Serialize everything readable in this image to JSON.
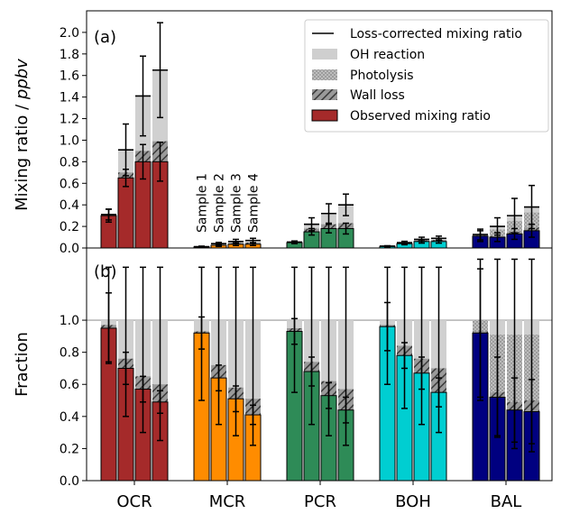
{
  "chart_data": [
    {
      "type": "bar",
      "panel_label": "(a)",
      "ylabel_main": "Mixing ratio / ",
      "ylabel_unit": "ppbv",
      "ylim": [
        0,
        2.2
      ],
      "yticks": [
        "0.0",
        "0.2",
        "0.4",
        "0.6",
        "0.8",
        "1.0",
        "1.2",
        "1.4",
        "1.6",
        "1.8",
        "2.0"
      ],
      "categories": [
        "OCR",
        "MCR",
        "PCR",
        "BOH",
        "BAL"
      ],
      "category_colors": [
        "#a52a2a",
        "#ff8c00",
        "#2e8b57",
        "#00ced1",
        "#000080"
      ],
      "sample_labels": [
        "Sample 1",
        "Sample 2",
        "Sample 3",
        "Sample 4"
      ],
      "legend": {
        "position": "top-right",
        "entries": [
          "Loss-corrected mixing ratio",
          "OH reaction",
          "Photolysis",
          "Wall loss",
          "Observed mixing ratio"
        ]
      },
      "groups": [
        {
          "category": "OCR",
          "samples": [
            {
              "observed": 0.3,
              "obs_err": 0.06,
              "wall": 0.02,
              "photolysis": 0.0,
              "oh_top": 0.31,
              "corrected": 0.31,
              "corr_err": 0.05
            },
            {
              "observed": 0.65,
              "obs_err": 0.08,
              "wall": 0.7,
              "photolysis": 0.7,
              "oh_top": 0.91,
              "corrected": 0.91,
              "corr_err": 0.24
            },
            {
              "observed": 0.8,
              "obs_err": 0.16,
              "wall": 0.9,
              "photolysis": 0.9,
              "oh_top": 1.41,
              "corrected": 1.41,
              "corr_err": 0.37
            },
            {
              "observed": 0.8,
              "obs_err": 0.18,
              "wall": 0.99,
              "photolysis": 0.99,
              "oh_top": 1.65,
              "corrected": 1.65,
              "corr_err": 0.44
            }
          ]
        },
        {
          "category": "MCR",
          "samples": [
            {
              "observed": 0.01,
              "obs_err": 0.005,
              "wall": 0.011,
              "photolysis": 0.011,
              "oh_top": 0.012,
              "corrected": 0.012,
              "corr_err": 0.005
            },
            {
              "observed": 0.025,
              "obs_err": 0.01,
              "wall": 0.03,
              "photolysis": 0.03,
              "oh_top": 0.04,
              "corrected": 0.04,
              "corr_err": 0.012
            },
            {
              "observed": 0.035,
              "obs_err": 0.012,
              "wall": 0.045,
              "photolysis": 0.045,
              "oh_top": 0.06,
              "corrected": 0.06,
              "corr_err": 0.02
            },
            {
              "observed": 0.035,
              "obs_err": 0.012,
              "wall": 0.05,
              "photolysis": 0.05,
              "oh_top": 0.07,
              "corrected": 0.07,
              "corr_err": 0.02
            }
          ]
        },
        {
          "category": "PCR",
          "samples": [
            {
              "observed": 0.05,
              "obs_err": 0.01,
              "wall": 0.052,
              "photolysis": 0.052,
              "oh_top": 0.055,
              "corrected": 0.055,
              "corr_err": 0.01
            },
            {
              "observed": 0.15,
              "obs_err": 0.03,
              "wall": 0.18,
              "photolysis": 0.18,
              "oh_top": 0.22,
              "corrected": 0.22,
              "corr_err": 0.06
            },
            {
              "observed": 0.18,
              "obs_err": 0.04,
              "wall": 0.22,
              "photolysis": 0.22,
              "oh_top": 0.32,
              "corrected": 0.32,
              "corr_err": 0.09
            },
            {
              "observed": 0.18,
              "obs_err": 0.05,
              "wall": 0.23,
              "photolysis": 0.23,
              "oh_top": 0.4,
              "corrected": 0.4,
              "corr_err": 0.1
            }
          ]
        },
        {
          "category": "BOH",
          "samples": [
            {
              "observed": 0.015,
              "obs_err": 0.004,
              "wall": 0.016,
              "photolysis": 0.016,
              "oh_top": 0.017,
              "corrected": 0.017,
              "corr_err": 0.004
            },
            {
              "observed": 0.04,
              "obs_err": 0.01,
              "wall": 0.045,
              "photolysis": 0.045,
              "oh_top": 0.05,
              "corrected": 0.05,
              "corr_err": 0.012
            },
            {
              "observed": 0.06,
              "obs_err": 0.015,
              "wall": 0.07,
              "photolysis": 0.07,
              "oh_top": 0.08,
              "corrected": 0.08,
              "corr_err": 0.02
            },
            {
              "observed": 0.06,
              "obs_err": 0.015,
              "wall": 0.075,
              "photolysis": 0.075,
              "oh_top": 0.09,
              "corrected": 0.09,
              "corr_err": 0.02
            }
          ]
        },
        {
          "category": "BAL",
          "samples": [
            {
              "observed": 0.11,
              "obs_err": 0.05,
              "wall": 0.115,
              "photolysis": 0.12,
              "oh_top": 0.125,
              "corrected": 0.125,
              "corr_err": 0.05
            },
            {
              "observed": 0.1,
              "obs_err": 0.04,
              "wall": 0.11,
              "photolysis": 0.17,
              "oh_top": 0.2,
              "corrected": 0.2,
              "corr_err": 0.08
            },
            {
              "observed": 0.13,
              "obs_err": 0.05,
              "wall": 0.15,
              "photolysis": 0.25,
              "oh_top": 0.3,
              "corrected": 0.3,
              "corr_err": 0.16
            },
            {
              "observed": 0.16,
              "obs_err": 0.06,
              "wall": 0.19,
              "photolysis": 0.33,
              "oh_top": 0.38,
              "corrected": 0.38,
              "corr_err": 0.2
            }
          ]
        }
      ]
    },
    {
      "type": "bar",
      "panel_label": "(b)",
      "ylabel": "Fraction",
      "ylim": [
        0,
        1.45
      ],
      "yticks": [
        "0.0",
        "0.2",
        "0.4",
        "0.6",
        "0.8",
        "1.0"
      ],
      "xlabels": [
        "OCR",
        "MCR",
        "PCR",
        "BOH",
        "BAL"
      ],
      "reference_line": 1.0,
      "groups": [
        {
          "category": "OCR",
          "samples": [
            {
              "observed": 0.95,
              "obs_err": 0.22,
              "wall": 0.97,
              "photolysis": 0.97,
              "err_lo": 0.74,
              "err_hi": 1.33
            },
            {
              "observed": 0.7,
              "obs_err": 0.1,
              "wall": 0.76,
              "photolysis": 0.76,
              "err_lo": 0.4,
              "err_hi": 1.33
            },
            {
              "observed": 0.57,
              "obs_err": 0.08,
              "wall": 0.65,
              "photolysis": 0.65,
              "err_lo": 0.3,
              "err_hi": 1.33
            },
            {
              "observed": 0.49,
              "obs_err": 0.07,
              "wall": 0.6,
              "photolysis": 0.6,
              "err_lo": 0.25,
              "err_hi": 1.33
            }
          ]
        },
        {
          "category": "MCR",
          "samples": [
            {
              "observed": 0.92,
              "obs_err": 0.1,
              "wall": 0.93,
              "photolysis": 0.93,
              "err_lo": 0.5,
              "err_hi": 1.33
            },
            {
              "observed": 0.64,
              "obs_err": 0.08,
              "wall": 0.72,
              "photolysis": 0.72,
              "err_lo": 0.35,
              "err_hi": 1.33
            },
            {
              "observed": 0.51,
              "obs_err": 0.08,
              "wall": 0.58,
              "photolysis": 0.58,
              "err_lo": 0.28,
              "err_hi": 1.33
            },
            {
              "observed": 0.41,
              "obs_err": 0.06,
              "wall": 0.51,
              "photolysis": 0.51,
              "err_lo": 0.22,
              "err_hi": 1.33
            }
          ]
        },
        {
          "category": "PCR",
          "samples": [
            {
              "observed": 0.93,
              "obs_err": 0.08,
              "wall": 0.95,
              "photolysis": 0.95,
              "err_lo": 0.55,
              "err_hi": 1.33
            },
            {
              "observed": 0.68,
              "obs_err": 0.09,
              "wall": 0.74,
              "photolysis": 0.74,
              "err_lo": 0.35,
              "err_hi": 1.33
            },
            {
              "observed": 0.53,
              "obs_err": 0.08,
              "wall": 0.62,
              "photolysis": 0.62,
              "err_lo": 0.28,
              "err_hi": 1.33
            },
            {
              "observed": 0.44,
              "obs_err": 0.08,
              "wall": 0.57,
              "photolysis": 0.57,
              "err_lo": 0.22,
              "err_hi": 1.33
            }
          ]
        },
        {
          "category": "BOH",
          "samples": [
            {
              "observed": 0.96,
              "obs_err": 0.15,
              "wall": 0.97,
              "photolysis": 0.97,
              "err_lo": 0.6,
              "err_hi": 1.33
            },
            {
              "observed": 0.78,
              "obs_err": 0.08,
              "wall": 0.84,
              "photolysis": 0.84,
              "err_lo": 0.45,
              "err_hi": 1.33
            },
            {
              "observed": 0.67,
              "obs_err": 0.1,
              "wall": 0.76,
              "photolysis": 0.76,
              "err_lo": 0.35,
              "err_hi": 1.33
            },
            {
              "observed": 0.55,
              "obs_err": 0.09,
              "wall": 0.7,
              "photolysis": 0.7,
              "err_lo": 0.3,
              "err_hi": 1.33
            }
          ]
        },
        {
          "category": "BAL",
          "samples": [
            {
              "observed": 0.92,
              "obs_err": 0.4,
              "wall": 0.93,
              "photolysis": 1.0,
              "err_lo": 0.5,
              "err_hi": 1.38
            },
            {
              "observed": 0.52,
              "obs_err": 0.25,
              "wall": 0.55,
              "photolysis": 0.91,
              "err_lo": 0.28,
              "err_hi": 1.38
            },
            {
              "observed": 0.44,
              "obs_err": 0.2,
              "wall": 0.49,
              "photolysis": 0.91,
              "err_lo": 0.2,
              "err_hi": 1.38
            },
            {
              "observed": 0.43,
              "obs_err": 0.2,
              "wall": 0.5,
              "photolysis": 0.91,
              "err_lo": 0.18,
              "err_hi": 1.38
            }
          ]
        }
      ]
    }
  ]
}
